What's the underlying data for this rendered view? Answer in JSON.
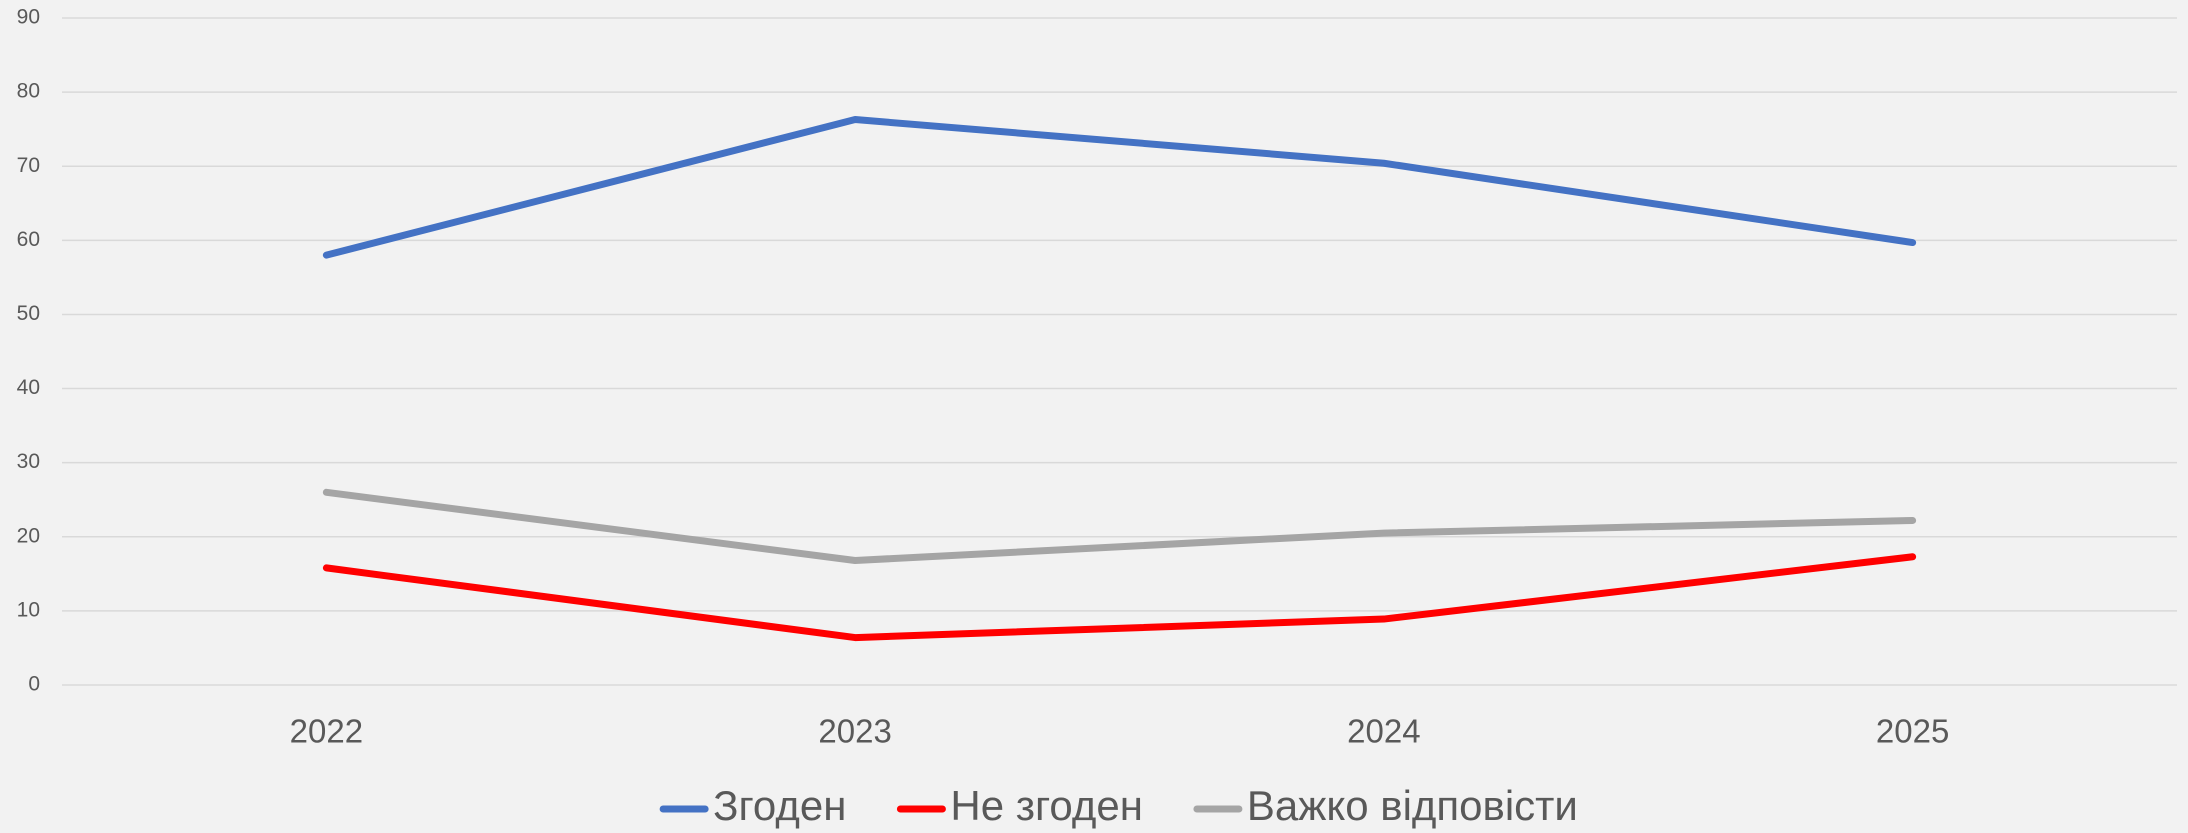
{
  "chart_data": {
    "type": "line",
    "categories": [
      "2022",
      "2023",
      "2024",
      "2025"
    ],
    "series": [
      {
        "name": "Згоден",
        "color": "#4472c4",
        "values": [
          58.0,
          76.3,
          70.4,
          59.7
        ]
      },
      {
        "name": "Не згоден",
        "color": "#ff0000",
        "values": [
          15.8,
          6.4,
          8.9,
          17.3
        ]
      },
      {
        "name": "Важко відповісти",
        "color": "#a5a5a5",
        "values": [
          26.0,
          16.8,
          20.5,
          22.2
        ]
      }
    ],
    "ylim": [
      0,
      90
    ],
    "yticks": [
      0,
      10,
      20,
      30,
      40,
      50,
      60,
      70,
      80,
      90
    ],
    "grid": true,
    "legend": "bottom"
  }
}
